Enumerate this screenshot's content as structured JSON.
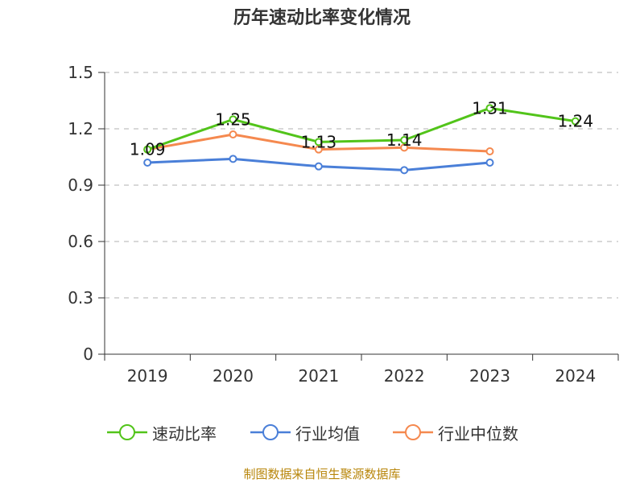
{
  "chart_data": {
    "type": "line",
    "title": "历年速动比率变化情况",
    "categories": [
      "2019",
      "2020",
      "2021",
      "2022",
      "2023",
      "2024"
    ],
    "y_ticks": [
      "0",
      "0.3",
      "0.6",
      "0.9",
      "1.2",
      "1.5"
    ],
    "ylim": [
      0,
      1.5
    ],
    "grid": true,
    "legend_position": "bottom",
    "series": [
      {
        "name": "速动比率",
        "color": "#52c41a",
        "values": [
          1.09,
          1.25,
          1.13,
          1.14,
          1.31,
          1.24
        ],
        "labels": [
          "1.09",
          "1.25",
          "1.13",
          "1.14",
          "1.31",
          "1.24"
        ]
      },
      {
        "name": "行业均值",
        "color": "#4a7fd8",
        "values": [
          1.02,
          1.04,
          1.0,
          0.98,
          1.02,
          null
        ]
      },
      {
        "name": "行业中位数",
        "color": "#f5894f",
        "values": [
          1.09,
          1.17,
          1.09,
          1.1,
          1.08,
          null
        ]
      }
    ]
  },
  "source_text": "制图数据来自恒生聚源数据库"
}
